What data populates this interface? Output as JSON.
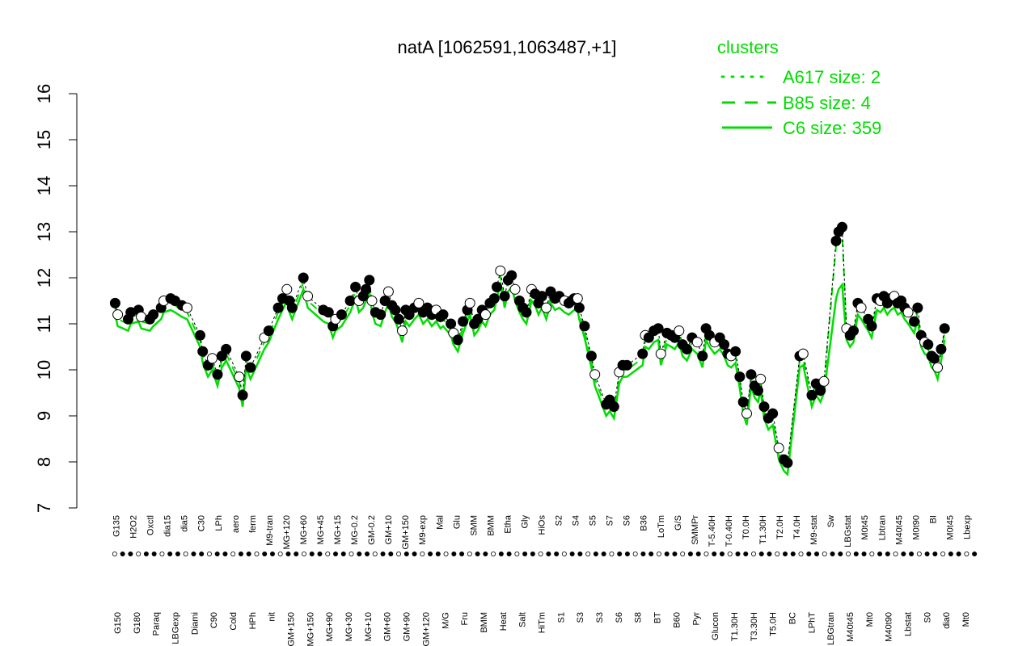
{
  "chart_data": {
    "type": "line",
    "title": "natA [1062591,1063487,+1]",
    "xlabel": "",
    "ylabel": "",
    "ylim": [
      7,
      16
    ],
    "yticks": [
      7,
      8,
      9,
      10,
      11,
      12,
      13,
      14,
      15,
      16
    ],
    "grid": false,
    "legend_position": "top-right",
    "legend_title": "clusters",
    "colors": {
      "accent": "#00dd00",
      "points_fill": "#000000",
      "points_alt": "#ffffff",
      "axis": "#000000"
    },
    "series": [
      {
        "name": "A617 size: 2",
        "style": "dotted"
      },
      {
        "name": "B85 size: 4",
        "style": "dashed"
      },
      {
        "name": "C6 size: 359",
        "style": "solid"
      }
    ],
    "x_labels_top": [
      "G135",
      "H2O2",
      "Oxctl",
      "dia15",
      "dia5",
      "C30",
      "LPh",
      "aero",
      "ferm",
      "M9-tran",
      "MG+120",
      "MG+60",
      "MG+45",
      "MG+15",
      "MG-0.2",
      "GM-0.2",
      "GM+10",
      "GM+150",
      "M9-exp",
      "Mal",
      "Glu",
      "SMM",
      "BMM",
      "Etha",
      "Gly",
      "HiOs",
      "S2",
      "S4",
      "S5",
      "S7",
      "S6",
      "B36",
      "LoTm",
      "G/S",
      "SMMPr",
      "T-5.40H",
      "T-0.40H",
      "T0.0H",
      "T1.30H",
      "T2.0H",
      "T4.0H",
      "M9-stat",
      "Sw",
      "LBGstat",
      "M0t45",
      "Lbtran",
      "M40t45",
      "M0t90",
      "BI",
      "M0t45",
      "Lbexp"
    ],
    "x_labels_bottom": [
      "G150",
      "G180",
      "Paraq",
      "LBGexp",
      "Diami",
      "C90",
      "Cold",
      "HPh",
      "nit",
      "GM+150",
      "MG+150",
      "MG+90",
      "MG+30",
      "MG+10",
      "GM+60",
      "GM+90",
      "GM+120",
      "M/G",
      "Fru",
      "BMM",
      "Heat",
      "Salt",
      "HiTm",
      "S1",
      "S3",
      "S3",
      "S6",
      "S8",
      "BT",
      "B60",
      "Pyr",
      "Glucon",
      "T1.30H",
      "T3.30H",
      "T5.0H",
      "BC",
      "LPhT",
      "LBGtran",
      "M40t45",
      "Mt0",
      "M40t90",
      "Lbstat",
      "S0",
      "dia0",
      "Mt0"
    ],
    "x_range": [
      0,
      100
    ],
    "points": [
      [
        0.5,
        11.45
      ],
      [
        0.8,
        11.2
      ],
      [
        2,
        11.1
      ],
      [
        2.3,
        11.25
      ],
      [
        3.2,
        11.3
      ],
      [
        3.5,
        11.15
      ],
      [
        4.5,
        11.1
      ],
      [
        4.9,
        11.2
      ],
      [
        5.8,
        11.35
      ],
      [
        6.1,
        11.5
      ],
      [
        6.9,
        11.55
      ],
      [
        7.4,
        11.5
      ],
      [
        8.2,
        11.4
      ],
      [
        8.8,
        11.35
      ],
      [
        10.3,
        10.75
      ],
      [
        10.6,
        10.4
      ],
      [
        11.2,
        10.1
      ],
      [
        11.7,
        10.25
      ],
      [
        12.3,
        9.9
      ],
      [
        12.8,
        10.3
      ],
      [
        13.3,
        10.45
      ],
      [
        14.8,
        9.85
      ],
      [
        15.2,
        9.45
      ],
      [
        15.6,
        10.3
      ],
      [
        16.1,
        10.05
      ],
      [
        17.7,
        10.7
      ],
      [
        18.2,
        10.85
      ],
      [
        19.3,
        11.35
      ],
      [
        19.8,
        11.55
      ],
      [
        20.3,
        11.75
      ],
      [
        20.6,
        11.5
      ],
      [
        20.9,
        11.35
      ],
      [
        22.2,
        12.0
      ],
      [
        22.7,
        11.6
      ],
      [
        24.5,
        11.3
      ],
      [
        25.1,
        11.25
      ],
      [
        25.6,
        10.95
      ],
      [
        25.9,
        11.1
      ],
      [
        26.6,
        11.2
      ],
      [
        27.6,
        11.5
      ],
      [
        28.2,
        11.8
      ],
      [
        28.6,
        11.5
      ],
      [
        29.1,
        11.6
      ],
      [
        29.4,
        11.75
      ],
      [
        29.8,
        11.95
      ],
      [
        30.1,
        11.5
      ],
      [
        30.5,
        11.25
      ],
      [
        31.1,
        11.2
      ],
      [
        31.6,
        11.5
      ],
      [
        32,
        11.7
      ],
      [
        32.4,
        11.4
      ],
      [
        32.8,
        11.3
      ],
      [
        33.2,
        11.1
      ],
      [
        33.6,
        10.85
      ],
      [
        34,
        11.3
      ],
      [
        34.4,
        11.2
      ],
      [
        35,
        11.35
      ],
      [
        35.5,
        11.45
      ],
      [
        36,
        11.25
      ],
      [
        36.5,
        11.35
      ],
      [
        37,
        11.2
      ],
      [
        37.5,
        11.3
      ],
      [
        38,
        11.15
      ],
      [
        38.3,
        11.2
      ],
      [
        39.2,
        11.0
      ],
      [
        39.5,
        10.8
      ],
      [
        40,
        10.65
      ],
      [
        40.6,
        11.05
      ],
      [
        41.1,
        11.3
      ],
      [
        41.4,
        11.45
      ],
      [
        41.9,
        11.0
      ],
      [
        42.3,
        11.1
      ],
      [
        42.8,
        11.3
      ],
      [
        43.2,
        11.2
      ],
      [
        43.7,
        11.45
      ],
      [
        44.2,
        11.55
      ],
      [
        44.5,
        11.8
      ],
      [
        44.9,
        12.15
      ],
      [
        45.4,
        11.6
      ],
      [
        45.8,
        11.95
      ],
      [
        46.2,
        12.05
      ],
      [
        46.6,
        11.75
      ],
      [
        47.1,
        11.5
      ],
      [
        47.5,
        11.35
      ],
      [
        47.9,
        11.25
      ],
      [
        48.5,
        11.75
      ],
      [
        48.9,
        11.65
      ],
      [
        49.3,
        11.45
      ],
      [
        49.7,
        11.6
      ],
      [
        50.2,
        11.35
      ],
      [
        50.7,
        11.7
      ],
      [
        51.2,
        11.55
      ],
      [
        51.7,
        11.6
      ],
      [
        52.3,
        11.5
      ],
      [
        52.8,
        11.45
      ],
      [
        53.1,
        11.5
      ],
      [
        53.4,
        11.55
      ],
      [
        53.8,
        11.55
      ],
      [
        54,
        11.35
      ],
      [
        54.6,
        10.95
      ],
      [
        55.4,
        10.3
      ],
      [
        55.8,
        9.9
      ],
      [
        57.1,
        9.25
      ],
      [
        57.5,
        9.35
      ],
      [
        58,
        9.2
      ],
      [
        58.6,
        9.95
      ],
      [
        59,
        10.1
      ],
      [
        59.5,
        10.1
      ],
      [
        61.3,
        10.35
      ],
      [
        61.6,
        10.75
      ],
      [
        62,
        10.7
      ],
      [
        62.6,
        10.85
      ],
      [
        63.1,
        10.9
      ],
      [
        63.4,
        10.35
      ],
      [
        64.1,
        10.8
      ],
      [
        64.6,
        10.75
      ],
      [
        65,
        10.7
      ],
      [
        65.5,
        10.85
      ],
      [
        65.9,
        10.55
      ],
      [
        66.4,
        10.45
      ],
      [
        67,
        10.7
      ],
      [
        67.6,
        10.6
      ],
      [
        68.2,
        10.3
      ],
      [
        68.6,
        10.9
      ],
      [
        69,
        10.75
      ],
      [
        69.6,
        10.6
      ],
      [
        70.2,
        10.7
      ],
      [
        70.7,
        10.55
      ],
      [
        71.1,
        10.35
      ],
      [
        71.5,
        10.3
      ],
      [
        72,
        10.4
      ],
      [
        72.5,
        9.85
      ],
      [
        72.9,
        9.3
      ],
      [
        73.3,
        9.05
      ],
      [
        73.8,
        9.9
      ],
      [
        74.2,
        9.65
      ],
      [
        74.6,
        9.55
      ],
      [
        74.9,
        9.8
      ],
      [
        75.3,
        9.2
      ],
      [
        75.8,
        8.95
      ],
      [
        76.3,
        9.05
      ],
      [
        77,
        8.3
      ],
      [
        77.6,
        8.05
      ],
      [
        78,
        7.98
      ],
      [
        79.4,
        10.3
      ],
      [
        79.8,
        10.35
      ],
      [
        80.8,
        9.45
      ],
      [
        81.3,
        9.7
      ],
      [
        81.8,
        9.55
      ],
      [
        82.2,
        9.75
      ],
      [
        83.6,
        12.8
      ],
      [
        83.9,
        13.0
      ],
      [
        84.3,
        13.1
      ],
      [
        84.8,
        10.9
      ],
      [
        85.2,
        10.75
      ],
      [
        85.6,
        10.85
      ],
      [
        86.1,
        11.45
      ],
      [
        86.5,
        11.35
      ],
      [
        87.3,
        11.1
      ],
      [
        87.7,
        10.95
      ],
      [
        88.3,
        11.55
      ],
      [
        88.7,
        11.5
      ],
      [
        89.1,
        11.6
      ],
      [
        89.5,
        11.45
      ],
      [
        89.9,
        11.55
      ],
      [
        90.3,
        11.6
      ],
      [
        90.7,
        11.45
      ],
      [
        91.1,
        11.5
      ],
      [
        91.5,
        11.35
      ],
      [
        91.9,
        11.25
      ],
      [
        92.6,
        11.05
      ],
      [
        93,
        11.35
      ],
      [
        93.4,
        10.75
      ],
      [
        93.8,
        10.6
      ],
      [
        94.2,
        10.55
      ],
      [
        94.6,
        10.3
      ],
      [
        94.9,
        10.25
      ],
      [
        95.3,
        10.05
      ],
      [
        95.7,
        10.45
      ],
      [
        96.1,
        10.9
      ]
    ]
  }
}
